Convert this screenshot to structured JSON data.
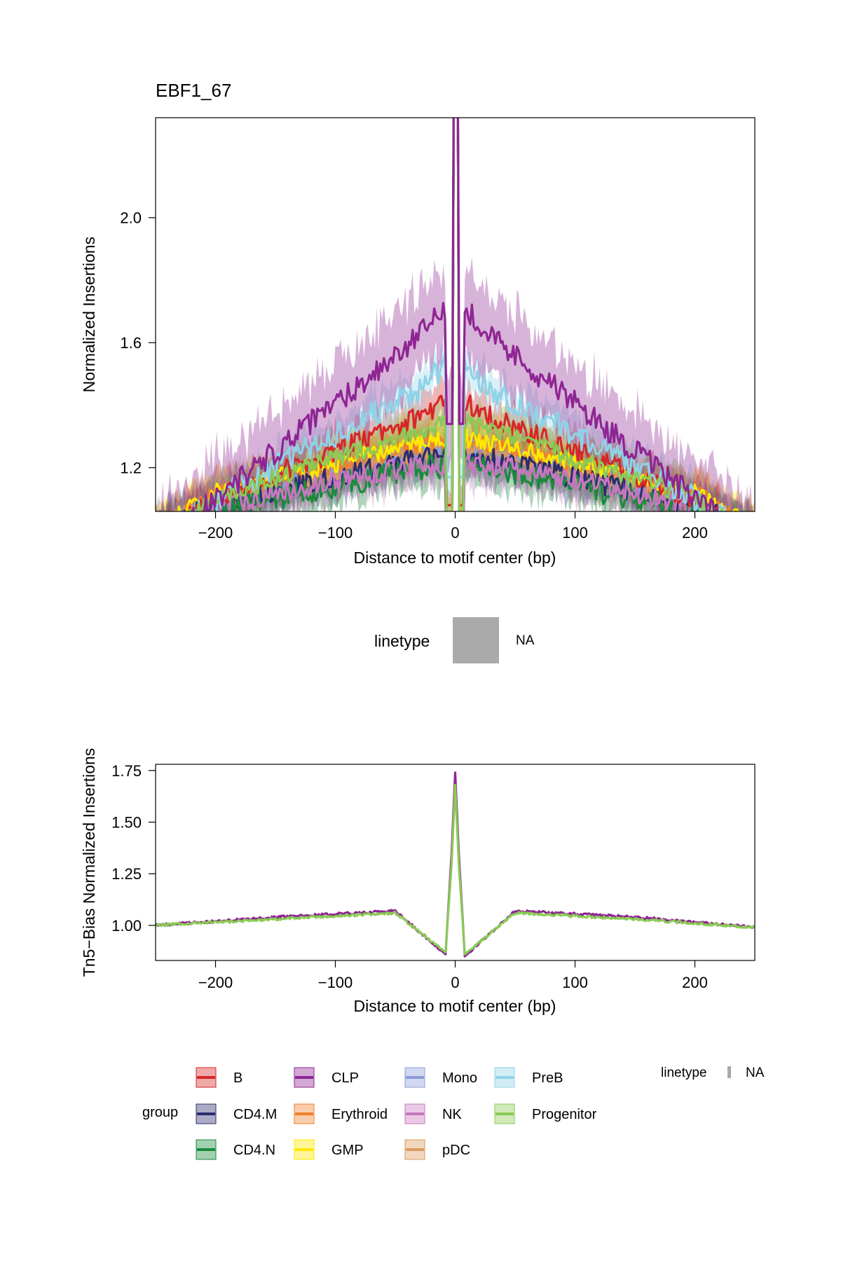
{
  "colors": {
    "B": "#D62728",
    "CD4.M": "#2C2D6E",
    "CD4.N": "#1A8A3C",
    "CLP": "#8E2593",
    "Erythroid": "#F07F2C",
    "GMP": "#FFE900",
    "Mono": "#8B9DD6",
    "NK": "#C877C0",
    "pDC": "#DB9A5E",
    "PreB": "#8ED3E8",
    "Progenitor": "#8ACB55"
  },
  "chart_data": [
    {
      "type": "line",
      "title": "EBF1_67",
      "xlabel": "Distance to motif center (bp)",
      "ylabel": "Normalized Insertions",
      "xlim": [
        -250,
        250
      ],
      "ylim": [
        1.06,
        2.32
      ],
      "x_ticks": [
        -200,
        -100,
        0,
        100,
        200
      ],
      "x_tick_labels": [
        "−200",
        "−100",
        "0",
        "100",
        "200"
      ],
      "y_ticks": [
        1.2,
        1.6,
        2.0
      ],
      "y_tick_labels": [
        "1.2",
        "1.6",
        "2.0"
      ],
      "grid": false,
      "series_summary": [
        {
          "name": "CLP",
          "x": [
            -250,
            -200,
            -150,
            -100,
            -50,
            -20,
            0,
            20,
            50,
            100,
            150,
            200,
            250
          ],
          "y": [
            1.0,
            1.1,
            1.36,
            1.55,
            1.7,
            1.93,
            2.3,
            1.93,
            1.7,
            1.55,
            1.36,
            1.1,
            0.95
          ]
        },
        {
          "name": "PreB",
          "x": [
            -250,
            -200,
            -150,
            -100,
            -50,
            -20,
            0,
            20,
            50,
            100,
            150,
            200,
            250
          ],
          "y": [
            1.0,
            1.1,
            1.27,
            1.42,
            1.5,
            1.65,
            2.3,
            1.65,
            1.45,
            1.37,
            1.27,
            1.12,
            0.97
          ]
        },
        {
          "name": "B",
          "x": [
            -250,
            -200,
            -150,
            -100,
            -50,
            -20,
            0,
            20,
            50,
            100,
            150,
            200,
            250
          ],
          "y": [
            1.0,
            1.1,
            1.26,
            1.33,
            1.4,
            1.5,
            2.3,
            1.43,
            1.38,
            1.3,
            1.24,
            1.12,
            0.97
          ]
        },
        {
          "name": "Progenitor",
          "x": [
            -250,
            -200,
            -150,
            -100,
            -50,
            0,
            50,
            100,
            150,
            200,
            250
          ],
          "y": [
            1.0,
            1.1,
            1.24,
            1.29,
            1.34,
            2.3,
            1.34,
            1.29,
            1.24,
            1.12,
            0.97
          ]
        },
        {
          "name": "NK",
          "x": [
            -250,
            -200,
            -150,
            -100,
            -50,
            0,
            50,
            100,
            150,
            200,
            250
          ],
          "y": [
            1.0,
            1.08,
            1.2,
            1.23,
            1.2,
            2.3,
            1.17,
            1.2,
            1.2,
            1.09,
            0.96
          ]
        }
      ]
    },
    {
      "type": "line",
      "xlabel": "Distance to motif center (bp)",
      "ylabel": "Tn5−Bias Normalized Insertions",
      "xlim": [
        -250,
        250
      ],
      "ylim": [
        0.83,
        1.78
      ],
      "x_ticks": [
        -200,
        -100,
        0,
        100,
        200
      ],
      "x_tick_labels": [
        "−200",
        "−100",
        "0",
        "100",
        "200"
      ],
      "y_ticks": [
        1.0,
        1.25,
        1.5,
        1.75
      ],
      "y_tick_labels": [
        "1.00",
        "1.25",
        "1.50",
        "1.75"
      ],
      "grid": false,
      "series_summary": [
        {
          "name": "CLP",
          "x": [
            -250,
            -150,
            -50,
            -8,
            -3,
            0,
            3,
            8,
            50,
            150,
            250
          ],
          "y": [
            1.0,
            1.04,
            1.07,
            0.86,
            1.35,
            1.74,
            1.35,
            0.85,
            1.07,
            1.04,
            0.99
          ]
        },
        {
          "name": "Progenitor",
          "x": [
            -250,
            -150,
            -50,
            -8,
            -3,
            0,
            3,
            8,
            50,
            150,
            250
          ],
          "y": [
            1.0,
            1.03,
            1.06,
            0.87,
            1.3,
            1.68,
            1.3,
            0.86,
            1.06,
            1.03,
            0.99
          ]
        }
      ]
    }
  ],
  "middle_legend": {
    "title": "linetype",
    "label": "NA"
  },
  "bottom_legend": {
    "title": "group",
    "items": [
      "B",
      "CD4.M",
      "CD4.N",
      "CLP",
      "Erythroid",
      "GMP",
      "Mono",
      "NK",
      "pDC",
      "PreB",
      "Progenitor"
    ],
    "linetype_title": "linetype",
    "linetype_label": "NA"
  }
}
